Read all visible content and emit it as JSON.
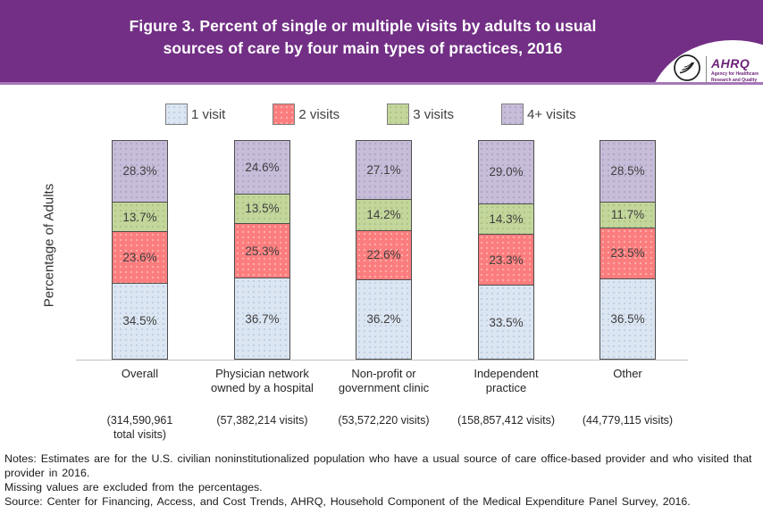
{
  "header": {
    "title": "Figure 3. Percent of single or multiple visits by adults to usual\nsources of care by four main types of practices, 2016",
    "logo": {
      "org": "AHRQ",
      "tagline": "Agency for Healthcare\nResearch and Quality"
    }
  },
  "chart_data": {
    "type": "bar",
    "stacked": true,
    "title": "Figure 3. Percent of single or multiple visits by adults to usual sources of care by four main types of practices, 2016",
    "ylabel": "Percentage of Adults",
    "ylim": [
      0,
      100
    ],
    "grid": false,
    "legend_position": "top",
    "value_label_suffix": "%",
    "categories": [
      "Overall",
      "Physician network\nowned by a hospital",
      "Non-profit or\ngovernment clinic",
      "Independent\npractice",
      "Other"
    ],
    "category_sublabels": [
      "(314,590,961\ntotal visits)",
      "(57,382,214 visits)",
      "(53,572,220 visits)",
      "(158,857,412 visits)",
      "(44,779,115 visits)"
    ],
    "series": [
      {
        "name": "1 visit",
        "color": "#dce6f2",
        "values": [
          34.5,
          36.7,
          36.2,
          33.5,
          36.5
        ]
      },
      {
        "name": "2 visits",
        "color": "#fb7d7d",
        "values": [
          23.6,
          25.3,
          22.6,
          23.3,
          23.5
        ]
      },
      {
        "name": "3 visits",
        "color": "#c3d69b",
        "values": [
          13.7,
          13.5,
          14.2,
          14.3,
          11.7
        ]
      },
      {
        "name": "4+ visits",
        "color": "#c7bdd9",
        "values": [
          28.3,
          24.6,
          27.1,
          29.0,
          28.5
        ]
      }
    ]
  },
  "notes": [
    "Notes: Estimates are for the U.S. civilian noninstitutionalized population who have a usual source of care office-based provider and who visited that provider in 2016.",
    "Missing values are excluded from the percentages.",
    "Source: Center for Financing, Access, and Cost Trends, AHRQ, Household Component of the Medical Expenditure Panel Survey, 2016."
  ],
  "colors": {
    "header_background": "#722f85",
    "header_separator": "#a678b8",
    "title_text": "#ffffff",
    "bar_border": "#4d4d4d",
    "logo_text": "#6d2379"
  }
}
